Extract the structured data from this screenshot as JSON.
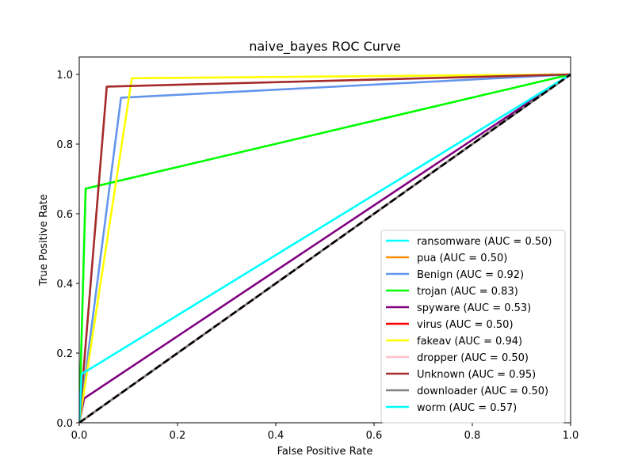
{
  "chart_data": {
    "type": "line",
    "title": "naive_bayes ROC Curve",
    "xlabel": "False Positive Rate",
    "ylabel": "True Positive Rate",
    "xlim": [
      0.0,
      1.0
    ],
    "ylim": [
      0.0,
      1.05
    ],
    "xticks": [
      "0.0",
      "0.2",
      "0.4",
      "0.6",
      "0.8",
      "1.0"
    ],
    "yticks": [
      "0.0",
      "0.2",
      "0.4",
      "0.6",
      "0.8",
      "1.0"
    ],
    "grid": false,
    "legend_position": "lower-right",
    "series": [
      {
        "name": "ransomware (AUC = 0.50)",
        "color": "#00ffff",
        "x": [
          0,
          1
        ],
        "y": [
          0,
          1
        ]
      },
      {
        "name": "pua (AUC = 0.50)",
        "color": "#ff8c00",
        "x": [
          0,
          1
        ],
        "y": [
          0,
          1
        ]
      },
      {
        "name": "Benign (AUC = 0.92)",
        "color": "#6495ed",
        "x": [
          0,
          0.085,
          1
        ],
        "y": [
          0,
          0.933,
          1
        ]
      },
      {
        "name": "trojan (AUC = 0.83)",
        "color": "#00ff00",
        "x": [
          0,
          0.013,
          1
        ],
        "y": [
          0,
          0.672,
          1
        ]
      },
      {
        "name": "spyware (AUC = 0.53)",
        "color": "#800080",
        "x": [
          0,
          0.01,
          1
        ],
        "y": [
          0,
          0.07,
          1
        ]
      },
      {
        "name": "virus (AUC = 0.50)",
        "color": "#ff0000",
        "x": [
          0,
          1
        ],
        "y": [
          0,
          1
        ]
      },
      {
        "name": "fakeav (AUC = 0.94)",
        "color": "#ffff00",
        "x": [
          0,
          0.107,
          1
        ],
        "y": [
          0,
          0.989,
          1
        ]
      },
      {
        "name": "dropper (AUC = 0.50)",
        "color": "#ffc0cb",
        "x": [
          0,
          1
        ],
        "y": [
          0,
          1
        ]
      },
      {
        "name": "Unknown (AUC = 0.95)",
        "color": "#a52a2a",
        "x": [
          0,
          0.056,
          1
        ],
        "y": [
          0,
          0.965,
          1
        ]
      },
      {
        "name": "downloader (AUC = 0.50)",
        "color": "#808080",
        "x": [
          0,
          1
        ],
        "y": [
          0,
          1
        ]
      },
      {
        "name": "worm (AUC = 0.57)",
        "color": "#00ffff",
        "x": [
          0,
          0.005,
          1
        ],
        "y": [
          0,
          0.14,
          1
        ]
      }
    ],
    "reference_line": {
      "color": "#000000",
      "style": "dashed",
      "x": [
        0,
        1
      ],
      "y": [
        0,
        1
      ]
    }
  }
}
